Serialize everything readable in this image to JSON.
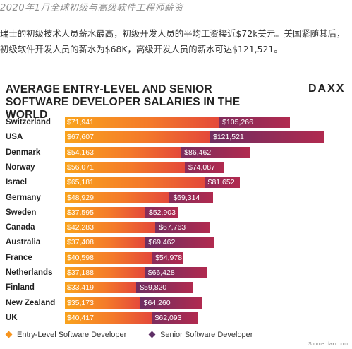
{
  "header": {
    "title": "2020年1月全球初级与高级软件工程师薪资",
    "paragraph": "瑞士的初级技术人员薪水最高，初级开发人员的平均工资接近$72k美元。美国紧随其后，初级软件开发人员的薪水为$68K，高级开发人员的薪水可达$121,521。"
  },
  "chart_data": {
    "type": "bar",
    "title": "AVERAGE ENTRY-LEVEL AND SENIOR SOFTWARE DEVELOPER SALARIES IN THE WORLD",
    "logo": "DAXX",
    "xlim": [
      0,
      125000
    ],
    "categories": [
      "Switzerland",
      "USA",
      "Denmark",
      "Norway",
      "Israel",
      "Germany",
      "Sweden",
      "Canada",
      "Australia",
      "France",
      "Netherlands",
      "Finland",
      "New Zealand",
      "UK"
    ],
    "series": [
      {
        "name": "Entry-Level Software Developer",
        "color": "#f7941d",
        "values": [
          71941,
          67607,
          54163,
          56071,
          65181,
          48929,
          37595,
          42283,
          37408,
          40598,
          37188,
          33419,
          35173,
          40417
        ],
        "labels": [
          "$71,941",
          "$67,607",
          "$54,163",
          "$56,071",
          "$65,181",
          "$48,929",
          "$37,595",
          "$42,283",
          "$37,408",
          "$40,598",
          "$37,188",
          "$33,419",
          "$35,173",
          "$40,417"
        ]
      },
      {
        "name": "Senior Software Developer",
        "color": "#5e2f66",
        "values": [
          105266,
          121521,
          86462,
          74087,
          81652,
          69314,
          52903,
          67763,
          69462,
          54978,
          66428,
          59820,
          64260,
          62093
        ],
        "labels": [
          "$105,266",
          "$121,521",
          "$86,462",
          "$74,087",
          "$81,652",
          "$69,314",
          "$52,903",
          "$67,763",
          "$69,462",
          "$54,978",
          "$66,428",
          "$59,820",
          "$64,260",
          "$62,093"
        ]
      }
    ],
    "source": "Source: daxx.com"
  }
}
